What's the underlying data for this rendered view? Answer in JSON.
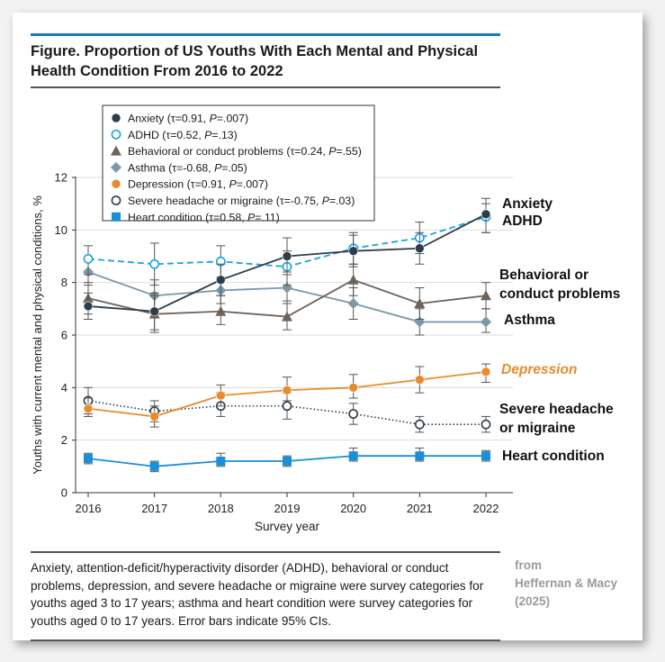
{
  "figure": {
    "title": "Figure. Proportion of US Youths With Each Mental and Physical Health Condition From 2016 to 2022",
    "caption": "Anxiety, attention-deficit/hyperactivity disorder (ADHD), behavioral or conduct problems, depression, and severe headache or migraine were survey categories for youths aged 3 to 17 years; asthma and heart condition were survey categories for youths aged 0 to 17 years. Error bars indicate 95% CIs.",
    "credit_lines": [
      "from",
      "Heffernan & Macy",
      "(2025)"
    ]
  },
  "chart_data": {
    "type": "line",
    "title": "Proportion of US Youths With Each Mental and Physical Health Condition From 2016 to 2022",
    "xlabel": "Survey year",
    "ylabel": "Youths with current mental and physical conditions, %",
    "x": [
      2016,
      2017,
      2018,
      2019,
      2020,
      2021,
      2022
    ],
    "x_tick_labels": [
      "2016",
      "2017",
      "2018",
      "2019",
      "2020",
      "2021",
      "2022"
    ],
    "ylim": [
      0,
      12
    ],
    "y_ticks": [
      0,
      2,
      4,
      6,
      8,
      10,
      12
    ],
    "y_tick_labels": [
      "0",
      "2",
      "4",
      "6",
      "8",
      "10",
      "12"
    ],
    "grid": "horizontal",
    "legend_position": "top-left",
    "series": [
      {
        "name": "Anxiety",
        "legend": [
          "Anxiety (τ=0.91, ",
          "P",
          "=.007)"
        ],
        "end_label": [
          "Anxiety"
        ],
        "color": "#2d3e4a",
        "marker": "filled-circle",
        "dash": "solid",
        "values": [
          7.1,
          6.9,
          8.1,
          9.0,
          9.2,
          9.3,
          10.6
        ],
        "ci_low": [
          6.6,
          6.2,
          7.5,
          8.3,
          8.6,
          8.7,
          9.9
        ],
        "ci_high": [
          7.6,
          7.6,
          8.7,
          9.7,
          9.8,
          9.9,
          11.2
        ]
      },
      {
        "name": "ADHD",
        "legend": [
          "ADHD (τ=0.52, ",
          "P",
          "=.13)"
        ],
        "end_label": [
          "ADHD"
        ],
        "color": "#1aa3dd",
        "marker": "open-circle",
        "dash": "dashed",
        "values": [
          8.9,
          8.7,
          8.8,
          8.6,
          9.3,
          9.7,
          10.5
        ],
        "ci_low": [
          8.3,
          7.9,
          8.2,
          7.9,
          8.7,
          9.1,
          9.9
        ],
        "ci_high": [
          9.4,
          9.5,
          9.4,
          9.2,
          9.9,
          10.3,
          11.0
        ]
      },
      {
        "name": "Behavioral or conduct problems",
        "legend": [
          "Behavioral or conduct problems (τ=0.24, ",
          "P",
          "=.55)"
        ],
        "end_label": [
          "Behavioral or",
          "conduct problems"
        ],
        "color": "#6e6359",
        "marker": "triangle",
        "dash": "solid",
        "values": [
          7.4,
          6.8,
          6.9,
          6.7,
          8.1,
          7.2,
          7.5
        ],
        "ci_low": [
          6.8,
          6.1,
          6.4,
          6.2,
          7.5,
          6.6,
          7.0
        ],
        "ci_high": [
          8.0,
          7.5,
          7.5,
          7.3,
          8.7,
          7.8,
          8.0
        ]
      },
      {
        "name": "Asthma",
        "legend": [
          "Asthma (τ=-0.68, ",
          "P",
          "=.05)"
        ],
        "end_label": [
          "Asthma"
        ],
        "color": "#7c97a6",
        "marker": "diamond",
        "dash": "solid",
        "values": [
          8.4,
          7.5,
          7.7,
          7.8,
          7.2,
          6.5,
          6.5
        ],
        "ci_low": [
          7.9,
          6.9,
          7.2,
          7.2,
          6.6,
          6.0,
          6.1
        ],
        "ci_high": [
          8.9,
          8.1,
          8.2,
          8.4,
          7.8,
          7.0,
          7.0
        ]
      },
      {
        "name": "Depression",
        "legend": [
          "Depression (τ=0.91, ",
          "P",
          "=.007)"
        ],
        "end_label": [
          "Depression"
        ],
        "end_label_italic": true,
        "color": "#e88b2e",
        "marker": "filled-circle",
        "dash": "solid",
        "values": [
          3.2,
          2.9,
          3.7,
          3.9,
          4.0,
          4.3,
          4.6
        ],
        "ci_low": [
          2.9,
          2.5,
          3.3,
          3.5,
          3.6,
          3.8,
          4.2
        ],
        "ci_high": [
          3.6,
          3.3,
          4.1,
          4.4,
          4.5,
          4.8,
          4.9
        ]
      },
      {
        "name": "Severe headache or migraine",
        "legend": [
          "Severe headache or migraine (τ=-0.75, ",
          "P",
          "=.03)"
        ],
        "end_label": [
          "Severe headache",
          "or migraine"
        ],
        "color": "#2d3e4a",
        "marker": "open-circle",
        "dash": "dotted",
        "values": [
          3.5,
          3.1,
          3.3,
          3.3,
          3.0,
          2.6,
          2.6
        ],
        "ci_low": [
          3.0,
          2.7,
          2.9,
          2.8,
          2.6,
          2.3,
          2.3
        ],
        "ci_high": [
          4.0,
          3.5,
          3.8,
          3.8,
          3.4,
          2.9,
          2.9
        ]
      },
      {
        "name": "Heart condition",
        "legend": [
          "Heart condition (τ=0.58, ",
          "P",
          "=.11)"
        ],
        "end_label": [
          "Heart condition"
        ],
        "color": "#1b8fd6",
        "marker": "square",
        "dash": "solid",
        "values": [
          1.3,
          1.0,
          1.2,
          1.2,
          1.4,
          1.4,
          1.4
        ],
        "ci_low": [
          1.1,
          0.8,
          1.0,
          1.0,
          1.2,
          1.2,
          1.2
        ],
        "ci_high": [
          1.5,
          1.2,
          1.5,
          1.4,
          1.7,
          1.7,
          1.6
        ]
      }
    ]
  }
}
